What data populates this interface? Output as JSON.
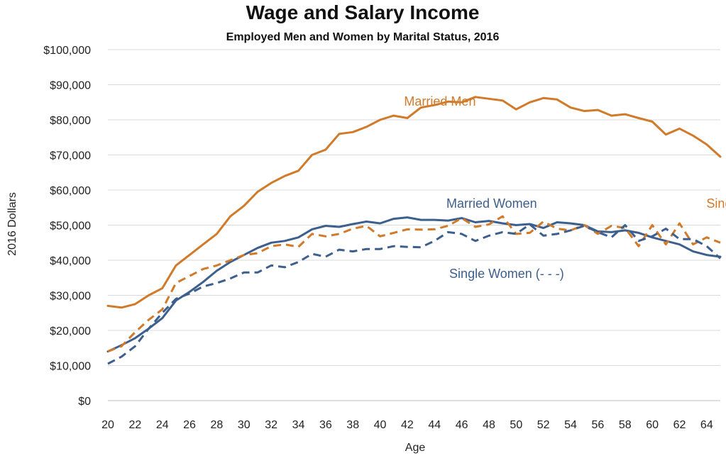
{
  "chart_data": {
    "type": "line",
    "title": "Wage and Salary Income",
    "subtitle": "Employed Men and Women by Marital Status, 2016",
    "xlabel": "Age",
    "ylabel": "2016 Dollars",
    "xlim": [
      20,
      65
    ],
    "ylim": [
      0,
      100000
    ],
    "x_ticks": [
      "20",
      "22",
      "24",
      "26",
      "28",
      "30",
      "32",
      "34",
      "36",
      "38",
      "40",
      "42",
      "44",
      "46",
      "48",
      "50",
      "52",
      "54",
      "56",
      "58",
      "60",
      "62",
      "64"
    ],
    "y_ticks": [
      "$0",
      "$10,000",
      "$20,000",
      "$30,000",
      "$40,000",
      "$50,000",
      "$60,000",
      "$70,000",
      "$80,000",
      "$90,000",
      "$100,000"
    ],
    "grid": "horizontal",
    "legend": "none",
    "x": [
      20,
      21,
      22,
      23,
      24,
      25,
      26,
      27,
      28,
      29,
      30,
      31,
      32,
      33,
      34,
      35,
      36,
      37,
      38,
      39,
      40,
      41,
      42,
      43,
      44,
      45,
      46,
      47,
      48,
      49,
      50,
      51,
      52,
      53,
      54,
      55,
      56,
      57,
      58,
      59,
      60,
      61,
      62,
      63,
      64,
      65
    ],
    "series": [
      {
        "name": "Married Men",
        "color": "#d07a2a",
        "dash": "solid",
        "values": [
          27000,
          26500,
          27500,
          30000,
          32000,
          38500,
          41500,
          44500,
          47500,
          52500,
          55500,
          59500,
          62000,
          64000,
          65500,
          70000,
          71500,
          76000,
          76500,
          78000,
          80000,
          81200,
          80500,
          83500,
          84200,
          85200,
          85000,
          86500,
          86000,
          85500,
          83000,
          85000,
          86200,
          85800,
          83500,
          82500,
          82800,
          81200,
          81600,
          80500,
          79500,
          75800,
          77500,
          75500,
          73000,
          69500
        ]
      },
      {
        "name": "Married Women",
        "color": "#3d5f8e",
        "dash": "solid",
        "values": [
          14000,
          15800,
          17800,
          20500,
          23500,
          28500,
          31000,
          33800,
          37000,
          39500,
          41500,
          43500,
          45000,
          45500,
          46500,
          48800,
          49800,
          49500,
          50300,
          51000,
          50500,
          51800,
          52200,
          51500,
          51500,
          51300,
          52000,
          50800,
          51200,
          50500,
          50000,
          50300,
          49200,
          50800,
          50500,
          50000,
          48200,
          48000,
          48500,
          47800,
          46500,
          45500,
          44500,
          42500,
          41500,
          41000
        ]
      },
      {
        "name": "Single Men",
        "color": "#d07a2a",
        "dash": "dashed",
        "values": [
          14000,
          15500,
          19500,
          23000,
          26000,
          33500,
          35500,
          37500,
          38500,
          40000,
          41500,
          42000,
          44000,
          44500,
          43800,
          47500,
          46800,
          47500,
          49000,
          49800,
          46800,
          47800,
          48800,
          48700,
          48800,
          49800,
          52000,
          49500,
          50200,
          52500,
          47500,
          47800,
          51000,
          49000,
          48500,
          50000,
          47500,
          49800,
          49200,
          44000,
          50000,
          44500,
          50500,
          44500,
          46500,
          45000
        ]
      },
      {
        "name": "Single Women",
        "color": "#3d5f8e",
        "dash": "dashed",
        "values": [
          10500,
          12500,
          15500,
          20500,
          25000,
          29000,
          30500,
          32500,
          33500,
          34800,
          36500,
          36500,
          38500,
          38000,
          39500,
          41800,
          41000,
          43000,
          42500,
          43200,
          43200,
          44000,
          43800,
          43700,
          45500,
          48000,
          47500,
          45500,
          47000,
          48000,
          47500,
          50200,
          47000,
          47500,
          48500,
          49800,
          48000,
          46500,
          50000,
          45500,
          46800,
          49000,
          46000,
          46000,
          44000,
          40500
        ]
      }
    ],
    "annotations": [
      {
        "text": "Married Men",
        "x": 44.4,
        "y": 84000,
        "color": "#d07a2a"
      },
      {
        "text": "Married Women",
        "x": 48.2,
        "y": 55000,
        "color": "#3d5f8e"
      },
      {
        "text": "Single Men (- - -)",
        "x": 67.5,
        "y": 55000,
        "color": "#d07a2a"
      },
      {
        "text": "Single Women (- - -)",
        "x": 49.3,
        "y": 35000,
        "color": "#3d5f8e"
      }
    ]
  }
}
